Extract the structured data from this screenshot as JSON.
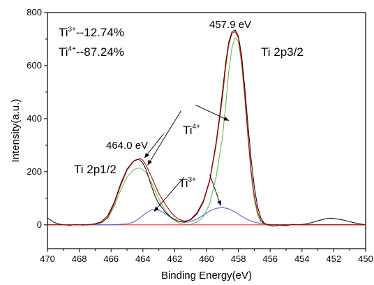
{
  "chart_data": {
    "type": "line",
    "title": "",
    "xlabel": "Binding Energy(eV)",
    "ylabel": "Intensity(a.u.)",
    "xlim": [
      470,
      450
    ],
    "ylim": [
      -90,
      800
    ],
    "x_reversed": true,
    "x_ticks": [
      470,
      468,
      466,
      464,
      462,
      460,
      458,
      456,
      454,
      452,
      450
    ],
    "y_ticks": [
      0,
      200,
      400,
      600,
      800
    ],
    "grid": false,
    "legend": "none",
    "series": [
      {
        "role": "raw",
        "color": "#000000",
        "x": [
          470.0,
          469.8,
          469.6,
          469.4,
          469.2,
          469.0,
          468.6,
          468.2,
          467.8,
          467.4,
          467.0,
          466.6,
          466.2,
          465.8,
          465.4,
          465.0,
          464.6,
          464.4,
          464.2,
          464.0,
          463.8,
          463.6,
          463.4,
          463.2,
          463.0,
          462.6,
          462.2,
          461.8,
          461.4,
          461.0,
          460.6,
          460.2,
          459.8,
          459.4,
          459.2,
          459.0,
          458.8,
          458.6,
          458.4,
          458.2,
          458.0,
          457.8,
          457.6,
          457.4,
          457.2,
          457.0,
          456.8,
          456.6,
          456.4,
          456.2,
          456.0,
          455.8,
          455.6,
          455.4,
          455.0,
          454.6,
          454.2,
          453.8,
          453.4,
          453.0,
          452.6,
          452.2,
          451.8,
          451.4,
          451.0,
          450.6,
          450.2,
          450.0
        ],
        "y": [
          25,
          18,
          10,
          5,
          2,
          0,
          -2,
          1,
          -1,
          0,
          4,
          12,
          35,
          85,
          155,
          210,
          240,
          246,
          245,
          232,
          208,
          172,
          135,
          102,
          80,
          48,
          26,
          14,
          10,
          20,
          45,
          90,
          170,
          310,
          400,
          500,
          610,
          690,
          728,
          735,
          712,
          640,
          520,
          380,
          250,
          145,
          70,
          28,
          8,
          0,
          -2,
          -5,
          -4,
          -1,
          -4,
          2,
          0,
          3,
          8,
          15,
          22,
          25,
          22,
          18,
          12,
          6,
          2,
          0
        ]
      },
      {
        "role": "envelope",
        "color": "#cc0000",
        "x": [
          470.0,
          469.0,
          468.0,
          467.0,
          466.6,
          466.2,
          465.8,
          465.4,
          465.0,
          464.6,
          464.2,
          464.0,
          463.8,
          463.4,
          463.0,
          462.6,
          462.2,
          461.8,
          461.4,
          461.0,
          460.6,
          460.2,
          459.8,
          459.4,
          459.0,
          458.8,
          458.6,
          458.4,
          458.2,
          458.0,
          457.8,
          457.6,
          457.4,
          457.2,
          457.0,
          456.8,
          456.6,
          456.4,
          456.0,
          455.0,
          453.0,
          450.0
        ],
        "y": [
          0,
          0,
          0,
          2,
          8,
          28,
          80,
          148,
          206,
          238,
          250,
          243,
          225,
          172,
          118,
          78,
          44,
          22,
          14,
          18,
          40,
          85,
          165,
          300,
          480,
          595,
          680,
          722,
          728,
          705,
          620,
          490,
          340,
          205,
          110,
          50,
          18,
          5,
          0,
          0,
          0,
          0
        ]
      },
      {
        "role": "Ti4+ fit",
        "color": "#66bb55",
        "x": [
          470.0,
          468.0,
          467.0,
          466.6,
          466.2,
          465.8,
          465.4,
          465.0,
          464.6,
          464.2,
          463.8,
          463.4,
          463.0,
          462.6,
          462.2,
          461.8,
          461.4,
          461.0,
          460.6,
          460.2,
          459.8,
          459.4,
          459.0,
          458.8,
          458.6,
          458.4,
          458.2,
          458.0,
          457.8,
          457.6,
          457.4,
          457.2,
          457.0,
          456.8,
          456.6,
          456.4,
          456.0,
          455.0,
          450.0
        ],
        "y": [
          0,
          0,
          2,
          8,
          25,
          70,
          130,
          180,
          208,
          215,
          198,
          150,
          98,
          55,
          25,
          8,
          2,
          2,
          10,
          30,
          80,
          180,
          330,
          450,
          580,
          670,
          705,
          690,
          610,
          480,
          330,
          190,
          95,
          38,
          12,
          3,
          0,
          0,
          0
        ]
      },
      {
        "role": "Ti3+ fit",
        "color": "#5566cc",
        "x": [
          470.0,
          466.0,
          465.0,
          464.6,
          464.2,
          463.8,
          463.4,
          463.0,
          462.6,
          462.2,
          461.8,
          461.4,
          461.0,
          460.6,
          460.2,
          459.8,
          459.4,
          459.0,
          458.6,
          458.2,
          457.8,
          457.4,
          457.0,
          456.6,
          456.2,
          455.8,
          455.0,
          450.0
        ],
        "y": [
          0,
          0,
          3,
          10,
          25,
          45,
          58,
          55,
          42,
          26,
          14,
          9,
          12,
          22,
          36,
          52,
          62,
          65,
          60,
          48,
          32,
          19,
          10,
          5,
          2,
          0,
          0,
          0
        ]
      },
      {
        "role": "baseline",
        "color": "#ff3333",
        "x": [
          470.0,
          450.0
        ],
        "y": [
          0,
          0
        ]
      }
    ],
    "annotations": {
      "ratio_ti3": {
        "ion": "Ti",
        "charge": "3+",
        "text": "--12.74%"
      },
      "ratio_ti4": {
        "ion": "Ti",
        "charge": "4+",
        "text": "--87.24%"
      },
      "peak_main_value": "457.9 eV",
      "peak_main_name": "Ti 2p3/2",
      "peak_sub_value": "464.0 eV",
      "peak_sub_name": "Ti 2p1/2",
      "ti4_label": {
        "ion": "Ti",
        "charge": "4+"
      },
      "ti3_label": {
        "ion": "Ti",
        "charge": "3+"
      }
    }
  }
}
